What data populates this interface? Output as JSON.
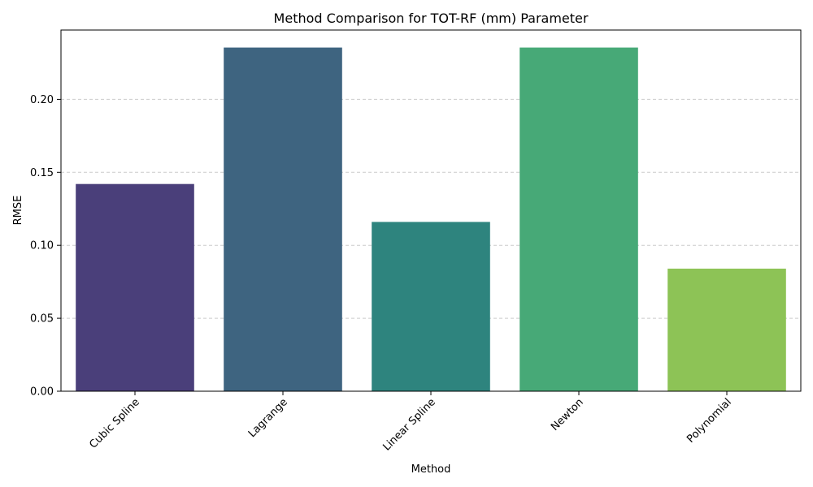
{
  "chart_data": {
    "type": "bar",
    "title": "Method Comparison for TOT-RF (mm) Parameter",
    "xlabel": "Method",
    "ylabel": "RMSE",
    "categories": [
      "Cubic Spline",
      "Lagrange",
      "Linear Spline",
      "Newton",
      "Polynomial"
    ],
    "values": [
      0.142,
      0.2355,
      0.116,
      0.2355,
      0.084
    ],
    "colors": [
      "#4a3f7a",
      "#3e6480",
      "#2e847e",
      "#47a977",
      "#8dc356"
    ],
    "ylim": [
      0,
      0.2475
    ],
    "yticks": [
      0.0,
      0.05,
      0.1,
      0.15,
      0.2
    ],
    "ytick_labels": [
      "0.00",
      "0.05",
      "0.10",
      "0.15",
      "0.20"
    ],
    "grid": "y-dashed",
    "legend": "none"
  }
}
